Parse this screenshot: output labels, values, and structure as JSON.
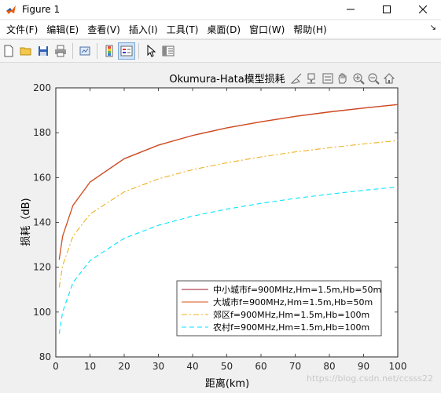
{
  "window": {
    "title": "Figure 1",
    "icon": "matlab-icon"
  },
  "menu": {
    "items": [
      "文件(F)",
      "编辑(E)",
      "查看(V)",
      "插入(I)",
      "工具(T)",
      "桌面(D)",
      "窗口(W)",
      "帮助(H)"
    ]
  },
  "toolbar": {
    "icons": [
      "new-figure-icon",
      "open-file-icon",
      "save-icon",
      "print-icon",
      "link-plot-icon",
      "insert-colorbar-icon",
      "insert-legend-icon",
      "pointer-icon",
      "property-inspector-icon"
    ]
  },
  "axes_toolbar": {
    "icons": [
      "brush-icon",
      "datatip-icon",
      "pan-hand-icon",
      "zoom-in-icon",
      "zoom-out-icon",
      "home-icon"
    ]
  },
  "chart_data": {
    "type": "line",
    "title": "Okumura-Hata模型损耗",
    "xlabel": "距离(km)",
    "ylabel": "损耗（dB)",
    "xlim": [
      0,
      100
    ],
    "ylim": [
      80,
      200
    ],
    "xticks": [
      0,
      10,
      20,
      30,
      40,
      50,
      60,
      70,
      80,
      90,
      100
    ],
    "yticks": [
      80,
      100,
      120,
      140,
      160,
      180,
      200
    ],
    "legend_position": "bottom-right",
    "series": [
      {
        "name": "中小城市f=900MHz,Hm=1.5m,Hb=50m",
        "color": "#A2142F",
        "dash": "solid",
        "x": [
          1,
          2,
          5,
          10,
          20,
          30,
          40,
          50,
          60,
          70,
          80,
          90,
          100
        ],
        "y": [
          123.5,
          133.9,
          147.6,
          158.0,
          168.4,
          174.5,
          178.8,
          182.2,
          184.9,
          187.3,
          189.3,
          191.0,
          192.6
        ]
      },
      {
        "name": "大城市f=900MHz,Hm=1.5m,Hb=50m",
        "color": "#D95319",
        "dash": "solid",
        "x": [
          1,
          2,
          5,
          10,
          20,
          30,
          40,
          50,
          60,
          70,
          80,
          90,
          100
        ],
        "y": [
          123.4,
          133.8,
          147.5,
          157.9,
          168.3,
          174.4,
          178.7,
          182.1,
          184.8,
          187.2,
          189.2,
          190.9,
          192.5
        ]
      },
      {
        "name": "郊区f=900MHz,Hm=1.5m,Hb=100m",
        "color": "#EDB120",
        "dash": "dashdot",
        "x": [
          1,
          2,
          5,
          10,
          20,
          30,
          40,
          50,
          60,
          70,
          80,
          90,
          100
        ],
        "y": [
          111.0,
          120.8,
          133.8,
          143.7,
          153.6,
          159.4,
          163.5,
          166.6,
          169.2,
          171.4,
          173.3,
          175.0,
          176.5
        ]
      },
      {
        "name": "农村f=900MHz,Hm=1.5m,Hb=100m",
        "color": "#00E5FF",
        "dash": "dashed",
        "x": [
          1,
          2,
          5,
          10,
          20,
          30,
          40,
          50,
          60,
          70,
          80,
          90,
          100
        ],
        "y": [
          90.3,
          100.1,
          113.1,
          123.0,
          132.9,
          138.7,
          142.8,
          145.9,
          148.5,
          150.7,
          152.6,
          154.3,
          155.8
        ]
      }
    ]
  },
  "watermark": "https://blog.csdn.net/ccsss22"
}
